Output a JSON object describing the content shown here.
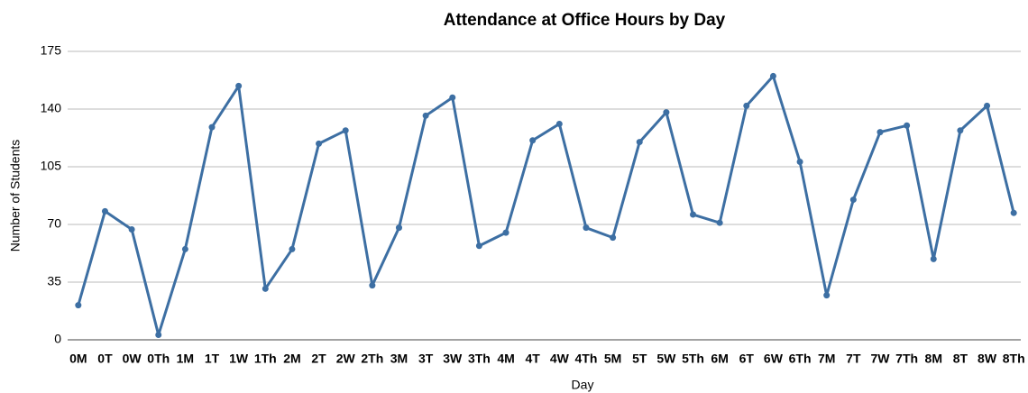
{
  "chart_data": {
    "type": "line",
    "title": "Attendance at Office Hours by Day",
    "x_label": "Day",
    "y_label": "Number of Students",
    "categories": [
      "0M",
      "0T",
      "0W",
      "0Th",
      "1M",
      "1T",
      "1W",
      "1Th",
      "2M",
      "2T",
      "2W",
      "2Th",
      "3M",
      "3T",
      "3W",
      "3Th",
      "4M",
      "4T",
      "4W",
      "4Th",
      "5M",
      "5T",
      "5W",
      "5Th",
      "6M",
      "6T",
      "6W",
      "6Th",
      "7M",
      "7T",
      "7W",
      "7Th",
      "8M",
      "8T",
      "8W",
      "8Th"
    ],
    "series": [
      {
        "name": "Number of Students",
        "color": "#3d6fa3",
        "values": [
          21,
          78,
          67,
          3,
          55,
          129,
          154,
          31,
          55,
          119,
          127,
          33,
          68,
          136,
          147,
          57,
          65,
          121,
          131,
          68,
          62,
          120,
          138,
          76,
          71,
          142,
          160,
          108,
          27,
          85,
          126,
          130,
          49,
          127,
          142,
          77
        ]
      }
    ],
    "ylim": [
      0,
      175
    ],
    "yticks": [
      0,
      35,
      70,
      105,
      140,
      175
    ],
    "grid": true
  }
}
